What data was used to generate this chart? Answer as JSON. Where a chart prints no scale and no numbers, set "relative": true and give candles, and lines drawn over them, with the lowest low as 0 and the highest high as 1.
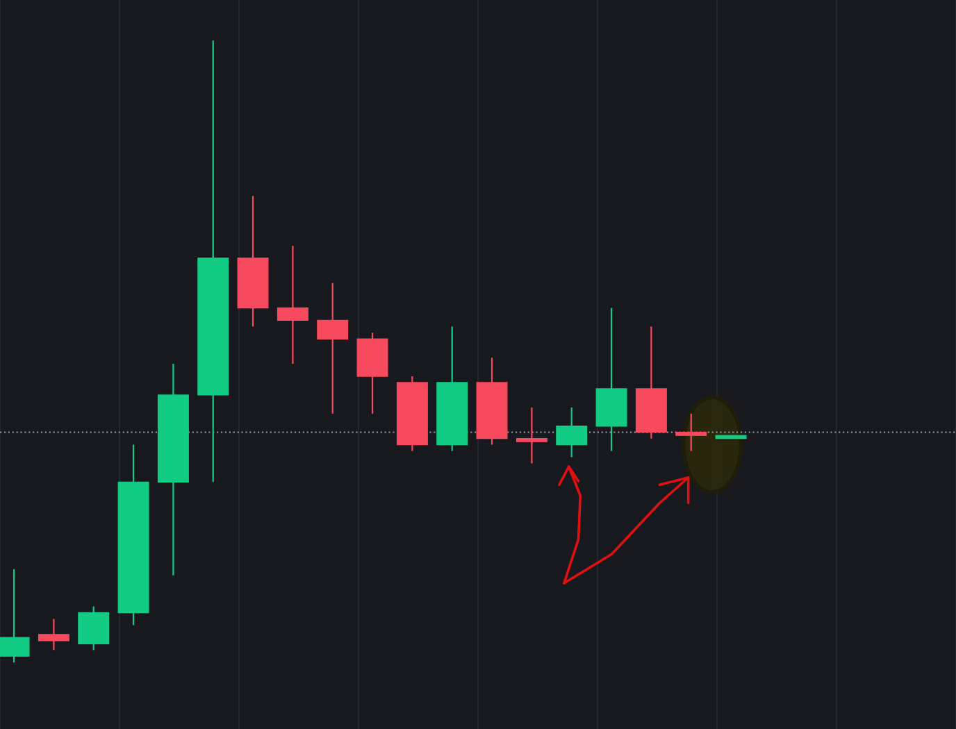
{
  "chart_data": {
    "type": "candlestick",
    "relative": true,
    "grid": true,
    "categories": [
      null,
      null,
      null,
      null,
      null,
      null,
      null,
      null,
      null,
      null,
      null,
      null,
      null,
      null,
      null,
      null,
      null,
      null,
      null
    ],
    "ohlc": [
      [
        0.01,
        0.15,
        0,
        0.04
      ],
      [
        0.045,
        0.07,
        0.02,
        0.035
      ],
      [
        0.03,
        0.09,
        0.02,
        0.08
      ],
      [
        0.08,
        0.35,
        0.06,
        0.29
      ],
      [
        0.29,
        0.48,
        0.14,
        0.43
      ],
      [
        0.43,
        1.0,
        0.29,
        0.65
      ],
      [
        0.65,
        0.75,
        0.54,
        0.57
      ],
      [
        0.57,
        0.67,
        0.48,
        0.55
      ],
      [
        0.55,
        0.61,
        0.4,
        0.52
      ],
      [
        0.52,
        0.53,
        0.4,
        0.46
      ],
      [
        0.45,
        0.46,
        0.34,
        0.35
      ],
      [
        0.35,
        0.54,
        0.34,
        0.45
      ],
      [
        0.45,
        0.49,
        0.35,
        0.36
      ],
      [
        0.36,
        0.41,
        0.32,
        0.355
      ],
      [
        0.35,
        0.41,
        0.33,
        0.38
      ],
      [
        0.38,
        0.57,
        0.34,
        0.44
      ],
      [
        0.44,
        0.54,
        0.36,
        0.37
      ],
      [
        0.37,
        0.4,
        0.34,
        0.365
      ],
      [
        0.36,
        0.365,
        0.36,
        0.365
      ]
    ],
    "colors": [
      "#12cc84",
      "#f74a5f",
      "#12cc84",
      "#12cc84",
      "#12cc84",
      "#12cc84",
      "#f74a5f",
      "#f74a5f",
      "#f74a5f",
      "#f74a5f",
      "#f74a5f",
      "#12cc84",
      "#f74a5f",
      "#f74a5f",
      "#12cc84",
      "#12cc84",
      "#f74a5f",
      "#f74a5f",
      "#12cc84"
    ],
    "ref_lines": [
      {
        "axis": "y",
        "value": 0.37,
        "color": "#8a8d94",
        "line_style": "dotted"
      }
    ]
  }
}
